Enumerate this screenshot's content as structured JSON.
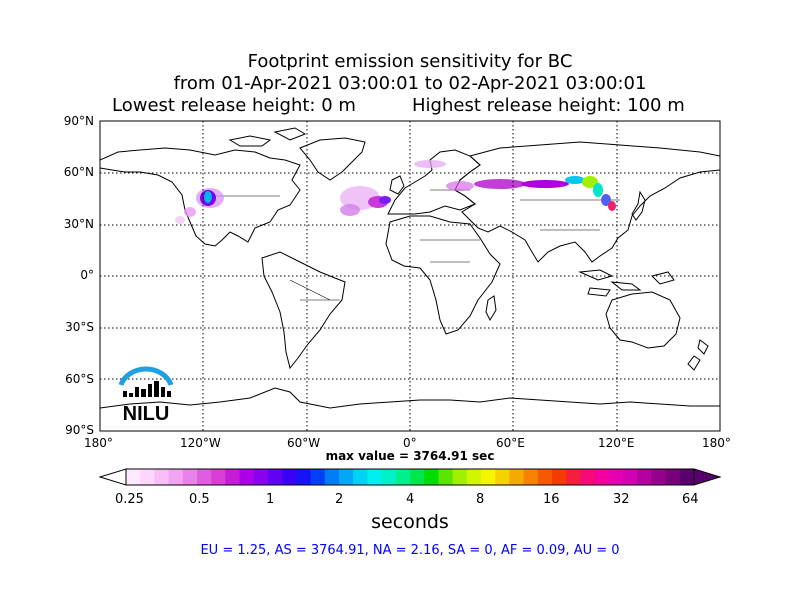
{
  "title": {
    "line1": "Footprint emission sensitivity for BC",
    "line2": "from 01-Apr-2021 03:00:01 to 02-Apr-2021 03:00:01",
    "line3a": "Lowest release height: 0 m",
    "line3b": "Highest release height: 100 m"
  },
  "map": {
    "lat_labels": [
      "90°N",
      "60°N",
      "30°N",
      "0°",
      "30°S",
      "60°S",
      "90°S"
    ],
    "lon_labels": [
      "180°",
      "120°W",
      "60°W",
      "0°",
      "60°E",
      "120°E",
      "180°"
    ],
    "logo_text": "NILU",
    "colors": {
      "logo": "#1fa0e0",
      "regions_text": "#0000ff"
    }
  },
  "max_value": "max value = 3764.91 sec",
  "colorbar": {
    "ticks": [
      "0.25",
      "0.5",
      "1",
      "2",
      "4",
      "8",
      "16",
      "32",
      "64"
    ],
    "unit": "seconds",
    "colors": [
      "#ffe9ff",
      "#ffd6ff",
      "#f7bff7",
      "#f2a3f2",
      "#ea82ea",
      "#e05ce0",
      "#d63ed6",
      "#c51cd6",
      "#ad00e8",
      "#8a00f0",
      "#6000f5",
      "#3a00f5",
      "#1414f5",
      "#0040f5",
      "#007cf5",
      "#00a8f5",
      "#00d2f5",
      "#00f0f0",
      "#00f0c8",
      "#00f08c",
      "#00e64d",
      "#00dc00",
      "#5ae600",
      "#a0f000",
      "#d2f500",
      "#f5f500",
      "#f5d200",
      "#f5aa00",
      "#f58200",
      "#f55a00",
      "#f53c00",
      "#f51e3c",
      "#f50a78",
      "#f500a0",
      "#e600b4",
      "#d200b4",
      "#b400a0",
      "#96008c",
      "#78007d",
      "#5a006e"
    ]
  },
  "regions": "EU = 1.25,  AS = 3764.91,  NA = 2.16,  SA = 0,  AF = 0.09,  AU = 0"
}
